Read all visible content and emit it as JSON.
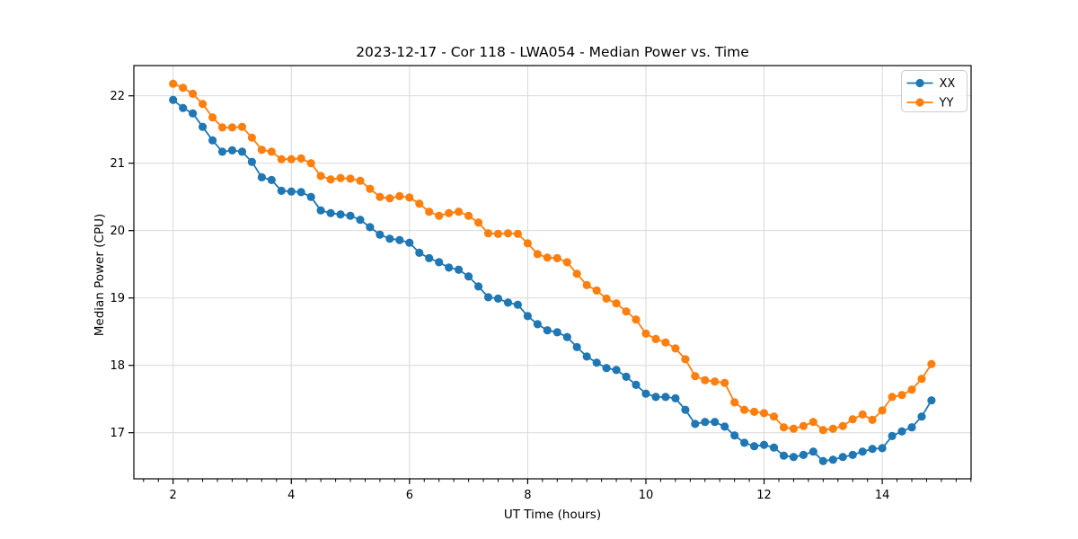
{
  "title": "2023-12-17 - Cor 118 - LWA054 - Median Power vs. Time",
  "colors": {
    "series_xx": "#1f77b4",
    "series_yy": "#ff7f0e",
    "grid": "#d9d9d9",
    "spine": "#000000",
    "legend_border": "#cccccc",
    "background": "#ffffff"
  },
  "chart_data": {
    "type": "line",
    "title": "2023-12-17 - Cor 118 - LWA054 - Median Power vs. Time",
    "xlabel": "UT Time (hours)",
    "ylabel": "Median Power (CPU)",
    "xlim": [
      1.336,
      15.503
    ],
    "ylim": [
      16.316,
      22.449
    ],
    "xticks": [
      2,
      4,
      6,
      8,
      10,
      12,
      14
    ],
    "yticks": [
      17,
      18,
      19,
      20,
      21,
      22
    ],
    "x_minor_tick_step": 0.25,
    "grid": true,
    "legend_position": "upper right",
    "marker": "o",
    "x": [
      2.0,
      2.167,
      2.333,
      2.5,
      2.667,
      2.833,
      3.0,
      3.167,
      3.333,
      3.5,
      3.667,
      3.833,
      4.0,
      4.167,
      4.333,
      4.5,
      4.667,
      4.833,
      5.0,
      5.167,
      5.333,
      5.5,
      5.667,
      5.833,
      6.0,
      6.167,
      6.333,
      6.5,
      6.667,
      6.833,
      7.0,
      7.167,
      7.333,
      7.5,
      7.667,
      7.833,
      8.0,
      8.167,
      8.333,
      8.5,
      8.667,
      8.833,
      9.0,
      9.167,
      9.333,
      9.5,
      9.667,
      9.833,
      10.0,
      10.167,
      10.333,
      10.5,
      10.667,
      10.833,
      11.0,
      11.167,
      11.333,
      11.5,
      11.667,
      11.833,
      12.0,
      12.167,
      12.333,
      12.5,
      12.667,
      12.833,
      13.0,
      13.167,
      13.333,
      13.5,
      13.667,
      13.833,
      14.0,
      14.167,
      14.333,
      14.5,
      14.667,
      14.833
    ],
    "series": [
      {
        "name": "XX",
        "color": "#1f77b4",
        "values": [
          21.94,
          21.82,
          21.74,
          21.54,
          21.34,
          21.17,
          21.19,
          21.17,
          21.02,
          20.79,
          20.75,
          20.59,
          20.58,
          20.57,
          20.5,
          20.3,
          20.26,
          20.24,
          20.22,
          20.16,
          20.05,
          19.94,
          19.88,
          19.86,
          19.82,
          19.67,
          19.59,
          19.53,
          19.45,
          19.42,
          19.32,
          19.17,
          19.01,
          18.99,
          18.93,
          18.9,
          18.73,
          18.61,
          18.52,
          18.49,
          18.42,
          18.27,
          18.13,
          18.04,
          17.96,
          17.93,
          17.83,
          17.71,
          17.58,
          17.53,
          17.53,
          17.51,
          17.34,
          17.13,
          17.16,
          17.16,
          17.09,
          16.96,
          16.85,
          16.8,
          16.82,
          16.78,
          16.66,
          16.64,
          16.67,
          16.72,
          16.58,
          16.6,
          16.64,
          16.67,
          16.72,
          16.76,
          16.77,
          16.95,
          17.02,
          17.08,
          17.24,
          17.48
        ]
      },
      {
        "name": "YY",
        "color": "#ff7f0e",
        "values": [
          22.18,
          22.12,
          22.03,
          21.88,
          21.68,
          21.53,
          21.53,
          21.54,
          21.38,
          21.2,
          21.17,
          21.06,
          21.06,
          21.07,
          21.0,
          20.81,
          20.76,
          20.78,
          20.77,
          20.74,
          20.62,
          20.5,
          20.48,
          20.51,
          20.49,
          20.4,
          20.28,
          20.22,
          20.26,
          20.28,
          20.22,
          20.12,
          19.96,
          19.95,
          19.96,
          19.95,
          19.81,
          19.65,
          19.6,
          19.59,
          19.53,
          19.36,
          19.19,
          19.11,
          18.99,
          18.92,
          18.8,
          18.68,
          18.47,
          18.39,
          18.34,
          18.25,
          18.09,
          17.84,
          17.78,
          17.76,
          17.74,
          17.45,
          17.34,
          17.31,
          17.29,
          17.24,
          17.08,
          17.06,
          17.1,
          17.16,
          17.04,
          17.06,
          17.1,
          17.2,
          17.27,
          17.19,
          17.33,
          17.53,
          17.56,
          17.64,
          17.8,
          18.02
        ]
      }
    ]
  }
}
